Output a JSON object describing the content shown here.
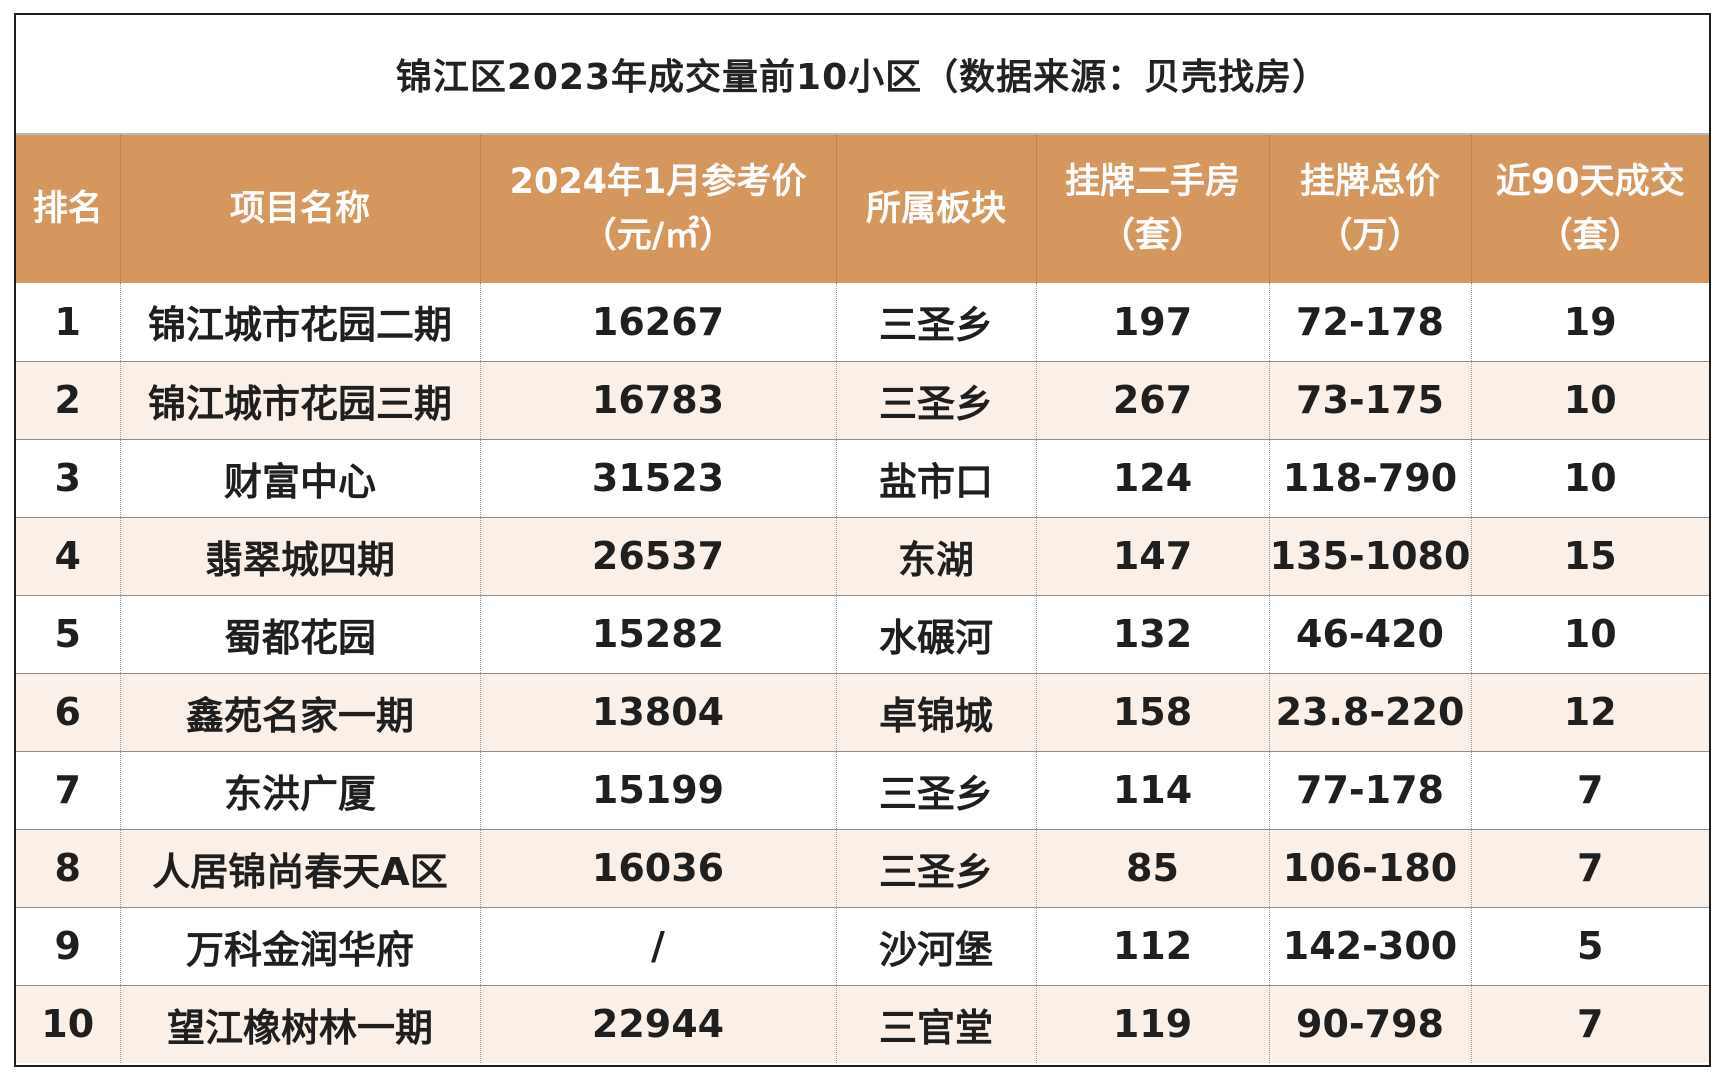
{
  "title": "锦江区2023年成交量前10小区（数据来源：贝壳找房）",
  "columns": [
    {
      "line1": "排名",
      "line2": ""
    },
    {
      "line1": "项目名称",
      "line2": ""
    },
    {
      "line1": "2024年1月参考价",
      "line2": "（元/㎡）"
    },
    {
      "line1": "所属板块",
      "line2": ""
    },
    {
      "line1": "挂牌二手房",
      "line2": "（套）"
    },
    {
      "line1": "挂牌总价",
      "line2": "（万）"
    },
    {
      "line1": "近90天成交",
      "line2": "（套）"
    }
  ],
  "rows": [
    {
      "rank": "1",
      "name": "锦江城市花园二期",
      "price": "16267",
      "area": "三圣乡",
      "listed": "197",
      "total": "72-178",
      "deals": "19"
    },
    {
      "rank": "2",
      "name": "锦江城市花园三期",
      "price": "16783",
      "area": "三圣乡",
      "listed": "267",
      "total": "73-175",
      "deals": "10"
    },
    {
      "rank": "3",
      "name": "财富中心",
      "price": "31523",
      "area": "盐市口",
      "listed": "124",
      "total": "118-790",
      "deals": "10"
    },
    {
      "rank": "4",
      "name": "翡翠城四期",
      "price": "26537",
      "area": "东湖",
      "listed": "147",
      "total": "135-1080",
      "deals": "15"
    },
    {
      "rank": "5",
      "name": "蜀都花园",
      "price": "15282",
      "area": "水碾河",
      "listed": "132",
      "total": "46-420",
      "deals": "10"
    },
    {
      "rank": "6",
      "name": "鑫苑名家一期",
      "price": "13804",
      "area": "卓锦城",
      "listed": "158",
      "total": "23.8-220",
      "deals": "12"
    },
    {
      "rank": "7",
      "name": "东洪广厦",
      "price": "15199",
      "area": "三圣乡",
      "listed": "114",
      "total": "77-178",
      "deals": "7"
    },
    {
      "rank": "8",
      "name": "人居锦尚春天A区",
      "price": "16036",
      "area": "三圣乡",
      "listed": "85",
      "total": "106-180",
      "deals": "7"
    },
    {
      "rank": "9",
      "name": "万科金润华府",
      "price": "/",
      "area": "沙河堡",
      "listed": "112",
      "total": "142-300",
      "deals": "5"
    },
    {
      "rank": "10",
      "name": "望江橡树林一期",
      "price": "22944",
      "area": "三官堂",
      "listed": "119",
      "total": "90-798",
      "deals": "7"
    }
  ],
  "colors": {
    "header_bg": "#d6975e",
    "header_text": "#ffffff",
    "stripe_bg": "#faf0e7",
    "body_text": "#1f1f1f"
  }
}
